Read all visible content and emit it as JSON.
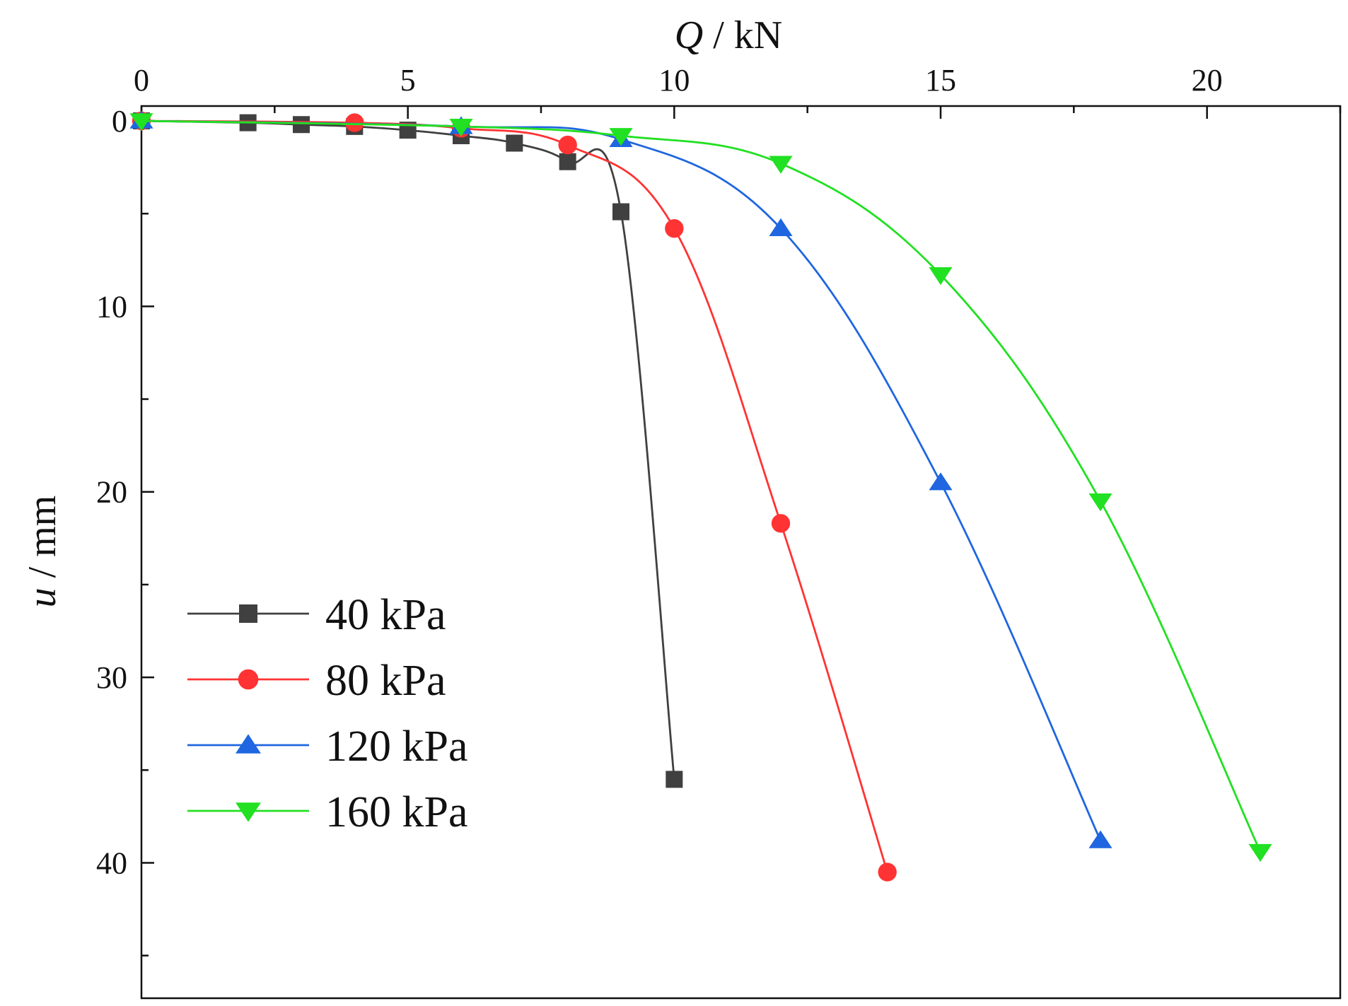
{
  "chart_data": {
    "type": "scatter",
    "x_axis": {
      "var": "Q",
      "unit": " / kN",
      "position": "top",
      "range": [
        0,
        22.5
      ],
      "ticks": [
        0,
        5,
        10,
        15,
        20
      ],
      "minor_step": 2.5
    },
    "y_axis": {
      "var": "u",
      "unit": " / mm",
      "inverted": true,
      "range": [
        -0.8,
        47.3
      ],
      "ticks": [
        0,
        10,
        20,
        30,
        40
      ],
      "minor_step": 5
    },
    "grid": false,
    "legend_position": "bottom-left",
    "series": [
      {
        "name": "40 kPa",
        "color": "#404040",
        "marker": "square",
        "x": [
          0,
          2,
          3,
          4,
          5,
          6,
          7,
          8,
          9,
          10
        ],
        "y": [
          0,
          0.1,
          0.2,
          0.3,
          0.5,
          0.8,
          1.2,
          2.2,
          4.9,
          35.5
        ]
      },
      {
        "name": "80 kPa",
        "color": "#ff3333",
        "marker": "circle",
        "x": [
          0,
          4,
          6,
          8,
          10,
          12,
          14
        ],
        "y": [
          0,
          0.1,
          0.4,
          1.3,
          5.8,
          21.7,
          40.5
        ]
      },
      {
        "name": "120 kPa",
        "color": "#1f66e0",
        "marker": "triangle-up",
        "x": [
          0,
          6,
          9,
          12,
          15,
          18
        ],
        "y": [
          0,
          0.3,
          1.0,
          5.8,
          19.5,
          38.8
        ]
      },
      {
        "name": "160 kPa",
        "color": "#22e022",
        "marker": "triangle-down",
        "x": [
          0,
          6,
          9,
          12,
          15,
          18,
          21
        ],
        "y": [
          0,
          0.3,
          0.8,
          2.3,
          8.3,
          20.5,
          39.4
        ]
      }
    ]
  }
}
